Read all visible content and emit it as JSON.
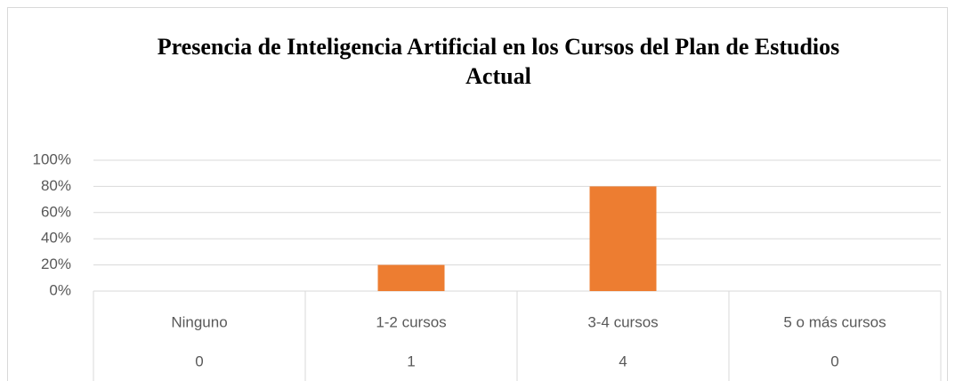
{
  "chart_data": {
    "type": "bar",
    "title": "Presencia de Inteligencia Artificial en los Cursos del Plan de Estudios Actual",
    "categories": [
      "Ninguno",
      "1-2 cursos",
      "3-4 cursos",
      "5 o más cursos"
    ],
    "values": [
      0,
      20,
      80,
      0
    ],
    "table_values": [
      0,
      1,
      4,
      0
    ],
    "color": "#ed7d31",
    "ylim": [
      0,
      100
    ],
    "yticks": [
      {
        "value": 0,
        "label": "0%"
      },
      {
        "value": 20,
        "label": "20%"
      },
      {
        "value": 40,
        "label": "40%"
      },
      {
        "value": 60,
        "label": "60%"
      },
      {
        "value": 80,
        "label": "80%"
      },
      {
        "value": 100,
        "label": "100%"
      }
    ],
    "grid": true
  }
}
